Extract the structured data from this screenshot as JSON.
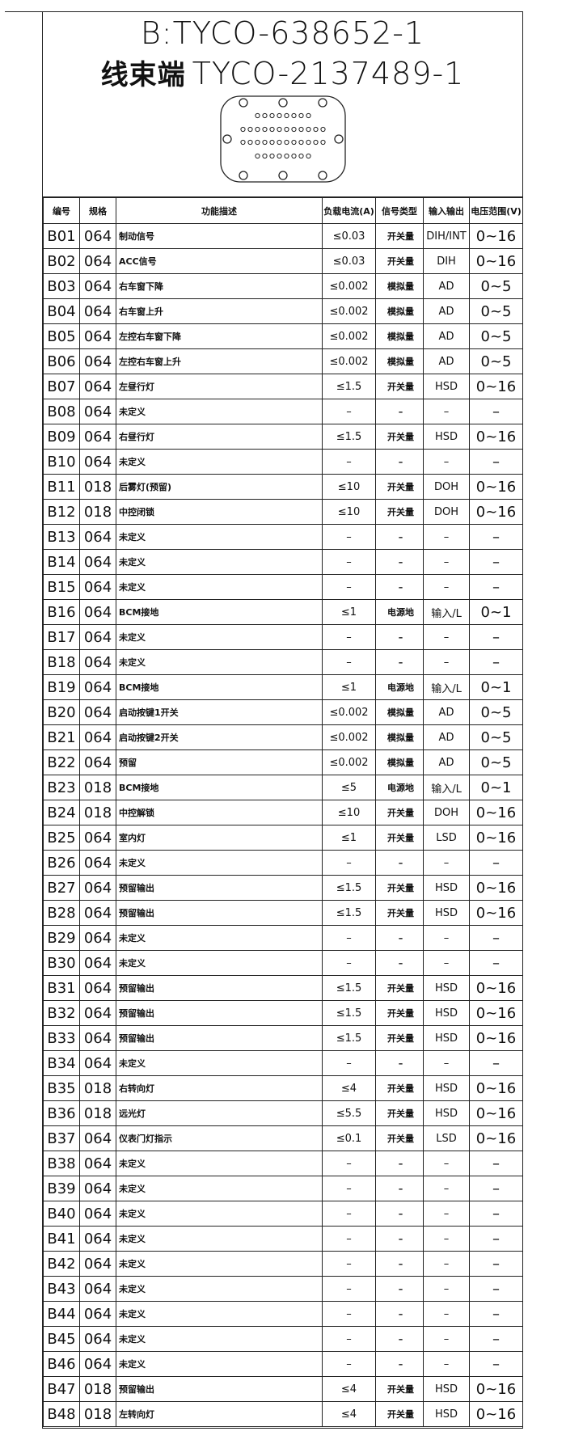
{
  "header": {
    "title": "B:TYCO-638652-1",
    "subtitle_label": "线束端",
    "subtitle": "TYCO-2137489-1"
  },
  "table": {
    "columns": [
      "编号",
      "规格",
      "功能描述",
      "负载电流(A)",
      "信号类型",
      "输入输出",
      "电压范围(V)"
    ],
    "rows": [
      [
        "B01",
        "064",
        "制动信号",
        "≤0.03",
        "开关量",
        "DIH/INT",
        "0~16"
      ],
      [
        "B02",
        "064",
        "ACC信号",
        "≤0.03",
        "开关量",
        "DIH",
        "0~16"
      ],
      [
        "B03",
        "064",
        "右车窗下降",
        "≤0.002",
        "模拟量",
        "AD",
        "0~5"
      ],
      [
        "B04",
        "064",
        "右车窗上升",
        "≤0.002",
        "模拟量",
        "AD",
        "0~5"
      ],
      [
        "B05",
        "064",
        "左控右车窗下降",
        "≤0.002",
        "模拟量",
        "AD",
        "0~5"
      ],
      [
        "B06",
        "064",
        "左控右车窗上升",
        "≤0.002",
        "模拟量",
        "AD",
        "0~5"
      ],
      [
        "B07",
        "064",
        "左昼行灯",
        "≤1.5",
        "开关量",
        "HSD",
        "0~16"
      ],
      [
        "B08",
        "064",
        "未定义",
        "–",
        "–",
        "–",
        "–"
      ],
      [
        "B09",
        "064",
        "右昼行灯",
        "≤1.5",
        "开关量",
        "HSD",
        "0~16"
      ],
      [
        "B10",
        "064",
        "未定义",
        "–",
        "–",
        "–",
        "–"
      ],
      [
        "B11",
        "018",
        "后雾灯(预留)",
        "≤10",
        "开关量",
        "DOH",
        "0~16"
      ],
      [
        "B12",
        "018",
        "中控闭锁",
        "≤10",
        "开关量",
        "DOH",
        "0~16"
      ],
      [
        "B13",
        "064",
        "未定义",
        "–",
        "–",
        "–",
        "–"
      ],
      [
        "B14",
        "064",
        "未定义",
        "–",
        "–",
        "–",
        "–"
      ],
      [
        "B15",
        "064",
        "未定义",
        "–",
        "–",
        "–",
        "–"
      ],
      [
        "B16",
        "064",
        "BCM接地",
        "≤1",
        "电源地",
        "输入/L",
        "0~1"
      ],
      [
        "B17",
        "064",
        "未定义",
        "–",
        "–",
        "–",
        "–"
      ],
      [
        "B18",
        "064",
        "未定义",
        "–",
        "–",
        "–",
        "–"
      ],
      [
        "B19",
        "064",
        "BCM接地",
        "≤1",
        "电源地",
        "输入/L",
        "0~1"
      ],
      [
        "B20",
        "064",
        "启动按键1开关",
        "≤0.002",
        "模拟量",
        "AD",
        "0~5"
      ],
      [
        "B21",
        "064",
        "启动按键2开关",
        "≤0.002",
        "模拟量",
        "AD",
        "0~5"
      ],
      [
        "B22",
        "064",
        "预留",
        "≤0.002",
        "模拟量",
        "AD",
        "0~5"
      ],
      [
        "B23",
        "018",
        "BCM接地",
        "≤5",
        "电源地",
        "输入/L",
        "0~1"
      ],
      [
        "B24",
        "018",
        "中控解锁",
        "≤10",
        "开关量",
        "DOH",
        "0~16"
      ],
      [
        "B25",
        "064",
        "室内灯",
        "≤1",
        "开关量",
        "LSD",
        "0~16"
      ],
      [
        "B26",
        "064",
        "未定义",
        "–",
        "–",
        "–",
        "–"
      ],
      [
        "B27",
        "064",
        "预留输出",
        "≤1.5",
        "开关量",
        "HSD",
        "0~16"
      ],
      [
        "B28",
        "064",
        "预留输出",
        "≤1.5",
        "开关量",
        "HSD",
        "0~16"
      ],
      [
        "B29",
        "064",
        "未定义",
        "–",
        "–",
        "–",
        "–"
      ],
      [
        "B30",
        "064",
        "未定义",
        "–",
        "–",
        "–",
        "–"
      ],
      [
        "B31",
        "064",
        "预留输出",
        "≤1.5",
        "开关量",
        "HSD",
        "0~16"
      ],
      [
        "B32",
        "064",
        "预留输出",
        "≤1.5",
        "开关量",
        "HSD",
        "0~16"
      ],
      [
        "B33",
        "064",
        "预留输出",
        "≤1.5",
        "开关量",
        "HSD",
        "0~16"
      ],
      [
        "B34",
        "064",
        "未定义",
        "–",
        "–",
        "–",
        "–"
      ],
      [
        "B35",
        "018",
        "右转向灯",
        "≤4",
        "开关量",
        "HSD",
        "0~16"
      ],
      [
        "B36",
        "018",
        "远光灯",
        "≤5.5",
        "开关量",
        "HSD",
        "0~16"
      ],
      [
        "B37",
        "064",
        "仪表门灯指示",
        "≤0.1",
        "开关量",
        "LSD",
        "0~16"
      ],
      [
        "B38",
        "064",
        "未定义",
        "–",
        "–",
        "–",
        "–"
      ],
      [
        "B39",
        "064",
        "未定义",
        "–",
        "–",
        "–",
        "–"
      ],
      [
        "B40",
        "064",
        "未定义",
        "–",
        "–",
        "–",
        "–"
      ],
      [
        "B41",
        "064",
        "未定义",
        "–",
        "–",
        "–",
        "–"
      ],
      [
        "B42",
        "064",
        "未定义",
        "–",
        "–",
        "–",
        "–"
      ],
      [
        "B43",
        "064",
        "未定义",
        "–",
        "–",
        "–",
        "–"
      ],
      [
        "B44",
        "064",
        "未定义",
        "–",
        "–",
        "–",
        "–"
      ],
      [
        "B45",
        "064",
        "未定义",
        "–",
        "–",
        "–",
        "–"
      ],
      [
        "B46",
        "064",
        "未定义",
        "–",
        "–",
        "–",
        "–"
      ],
      [
        "B47",
        "018",
        "预留输出",
        "≤4",
        "开关量",
        "HSD",
        "0~16"
      ],
      [
        "B48",
        "018",
        "左转向灯",
        "≤4",
        "开关量",
        "HSD",
        "0~16"
      ]
    ]
  }
}
